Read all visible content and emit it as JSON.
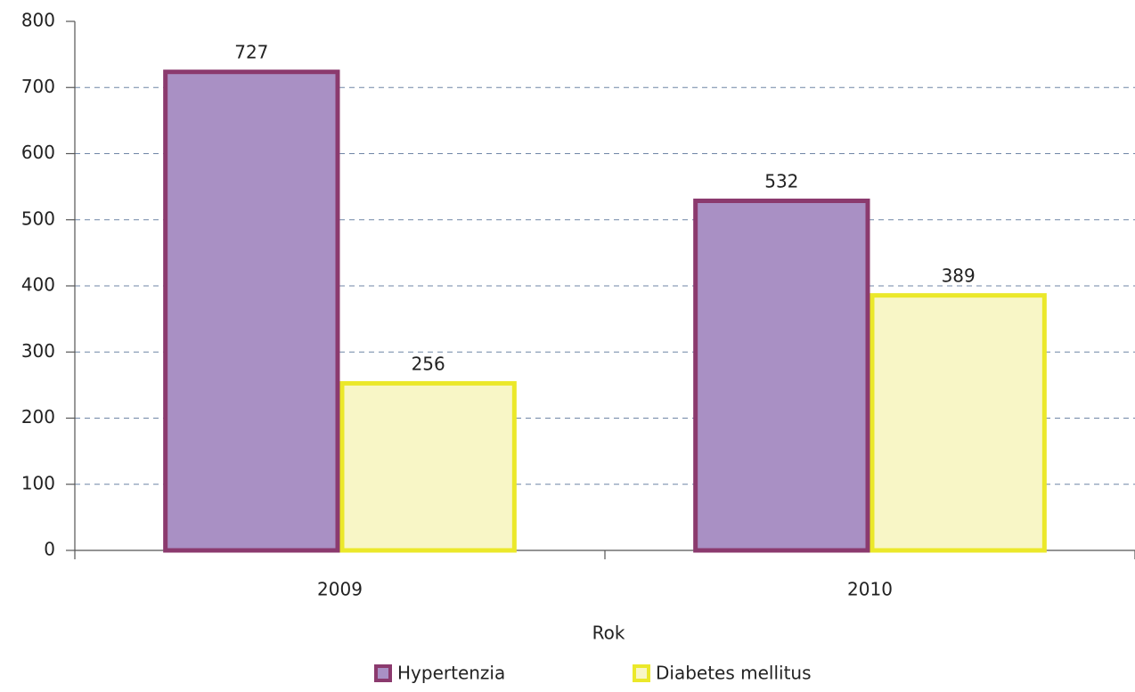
{
  "chart_data": {
    "type": "bar",
    "categories": [
      "2009",
      "2010"
    ],
    "series": [
      {
        "name": "Hypertenzia",
        "color": "#a990c4",
        "edge_color": "#8b3a6e",
        "values": [
          727,
          532
        ]
      },
      {
        "name": "Diabetes mellitus",
        "color": "#f8f6c6",
        "edge_color": "#ebe82a",
        "values": [
          256,
          389
        ]
      }
    ],
    "x_label": "Rok",
    "ylim": [
      0,
      800
    ],
    "yticks": [
      0,
      100,
      200,
      300,
      400,
      500,
      600,
      700,
      800
    ],
    "grid": true,
    "legend": "bottom"
  }
}
